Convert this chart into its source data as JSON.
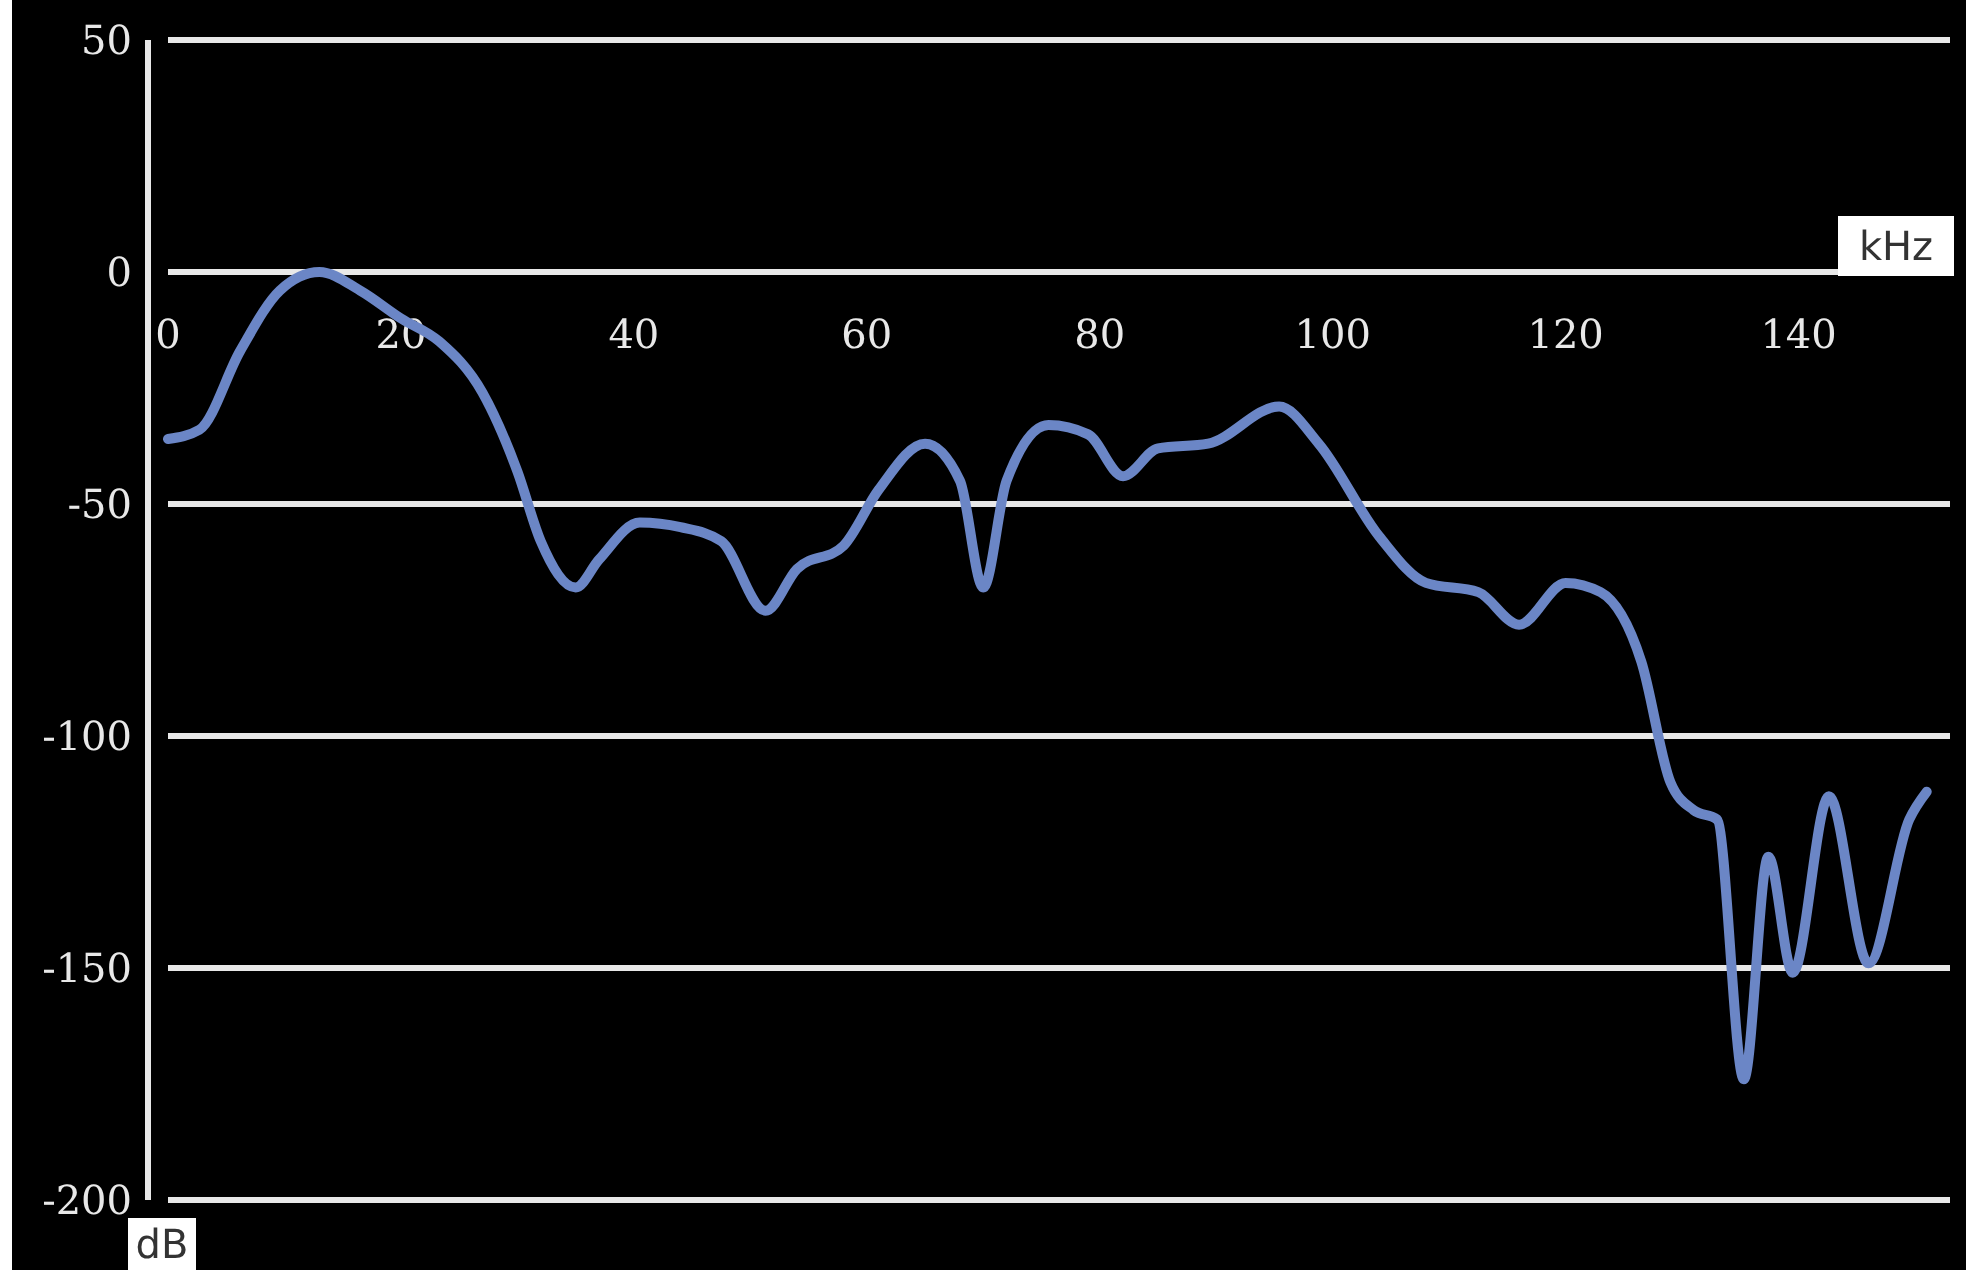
{
  "chart_data": {
    "type": "line",
    "xlabel": "kHz",
    "ylabel": "dB",
    "xlim": [
      0,
      153
    ],
    "ylim": [
      -200,
      50
    ],
    "xticks": [
      0,
      20,
      40,
      60,
      80,
      100,
      120,
      140
    ],
    "yticks": [
      50,
      0,
      -50,
      -100,
      -150,
      -200
    ],
    "grid": "y",
    "marker": "none",
    "line_style": "solid",
    "series": [
      {
        "color": "#6b86c6",
        "x": [
          0,
          2.7,
          6.2,
          9.6,
          13,
          16.5,
          20,
          23.3,
          27,
          30,
          32,
          35,
          37,
          40.5,
          44,
          47.5,
          51.3,
          54,
          58,
          61,
          65,
          68,
          70,
          72,
          75.6,
          79,
          82,
          85,
          89.3,
          95.4,
          98.8,
          104,
          108,
          112.5,
          116,
          120,
          123,
          126.5,
          129,
          131,
          133,
          135.3,
          137.4,
          139.5,
          142.6,
          146,
          149.5,
          151
        ],
        "values": [
          -36,
          -34,
          -17,
          -4,
          0,
          -4,
          -10,
          -15,
          -26,
          -43,
          -58,
          -68,
          -62,
          -54,
          -55,
          -58,
          -73,
          -64,
          -59,
          -47,
          -37,
          -45,
          -68,
          -45,
          -33,
          -35,
          -44,
          -38,
          -37,
          -29,
          -37,
          -57,
          -67,
          -69,
          -76,
          -67,
          -69,
          -84,
          -110,
          -116,
          -118,
          -174,
          -126,
          -151,
          -113,
          -149,
          -118,
          -112
        ]
      }
    ]
  }
}
